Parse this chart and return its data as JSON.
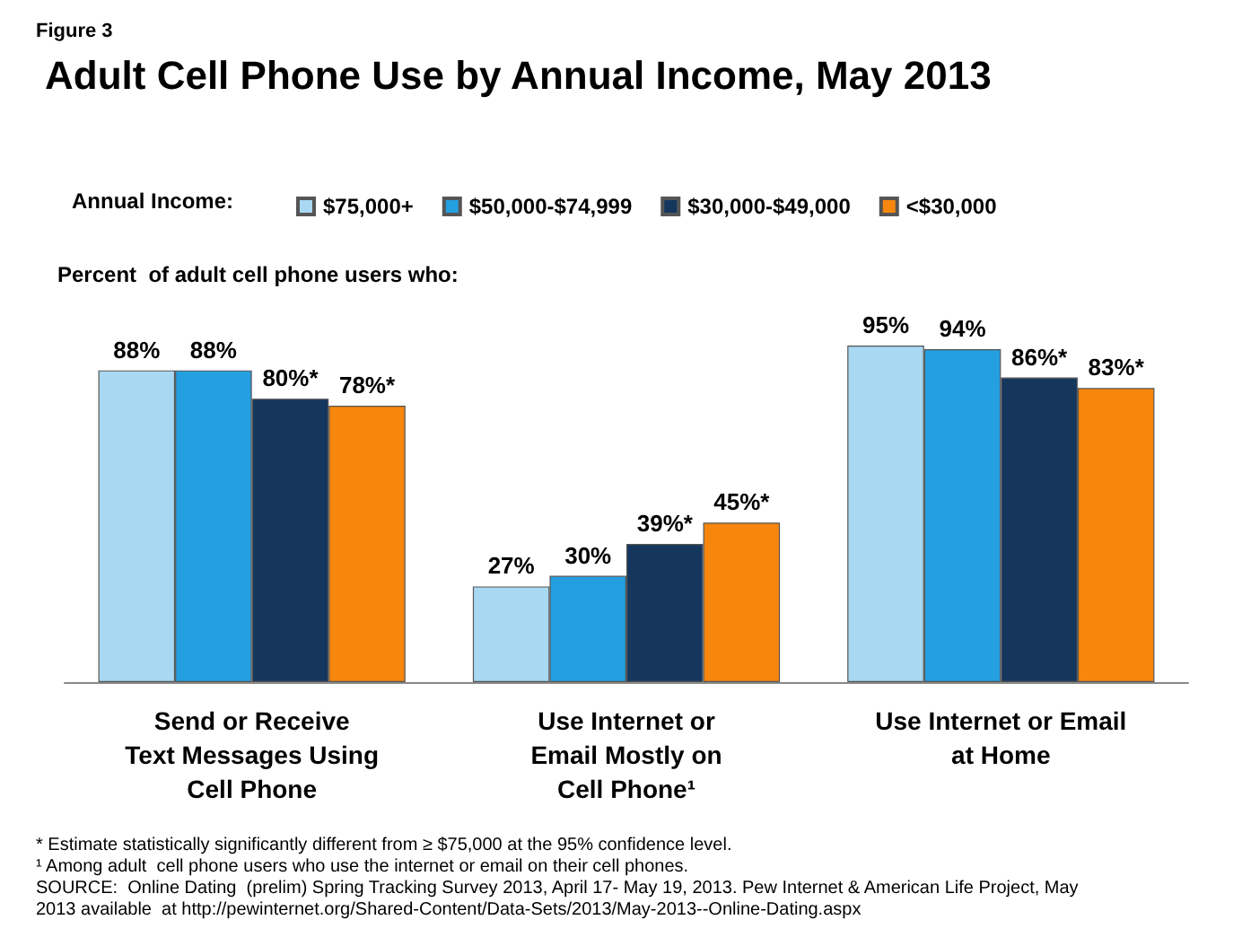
{
  "chart_data": {
    "type": "bar",
    "title": "Adult Cell Phone Use by Annual Income, May 2013",
    "subtitle": "Percent  of adult cell phone users who:",
    "legend_title": "Annual Income:",
    "legend": "top",
    "categories": [
      "Send or Receive\nText Messages Using\nCell Phone",
      "Use Internet or\nEmail Mostly on\nCell Phone¹",
      "Use Internet or Email\nat Home"
    ],
    "series": [
      {
        "name": "$75,000+",
        "color": "#a9d9f2",
        "values": [
          88,
          27,
          95
        ],
        "value_labels": [
          "88%",
          "27%",
          "95%"
        ]
      },
      {
        "name": "$50,000-$74,999",
        "color": "#249fe0",
        "values": [
          88,
          30,
          94
        ],
        "value_labels": [
          "88%",
          "30%",
          "94%"
        ]
      },
      {
        "name": "$30,000-$49,000",
        "color": "#15375e",
        "values": [
          80,
          39,
          86
        ],
        "value_labels": [
          "80%*",
          "39%*",
          "86%*"
        ]
      },
      {
        "name": "<$30,000",
        "color": "#f7860f",
        "values": [
          78,
          45,
          83
        ],
        "value_labels": [
          "78%*",
          "45%*",
          "83%*"
        ]
      }
    ],
    "annotations": [
      "Figure 3",
      "* Estimate statistically significantly different from ≥ $75,000 at the 95% confidence level.",
      "¹ Among adult  cell phone users who use the internet or email on their cell phones.",
      "SOURCE:  Online Dating  (prelim) Spring Tracking Survey 2013, April 17- May 19, 2013. Pew Internet & American Life Project, May\n2013 available  at http://pewinternet.org/Shared-Content/Data-Sets/2013/May-2013--Online-Dating.aspx"
    ]
  }
}
